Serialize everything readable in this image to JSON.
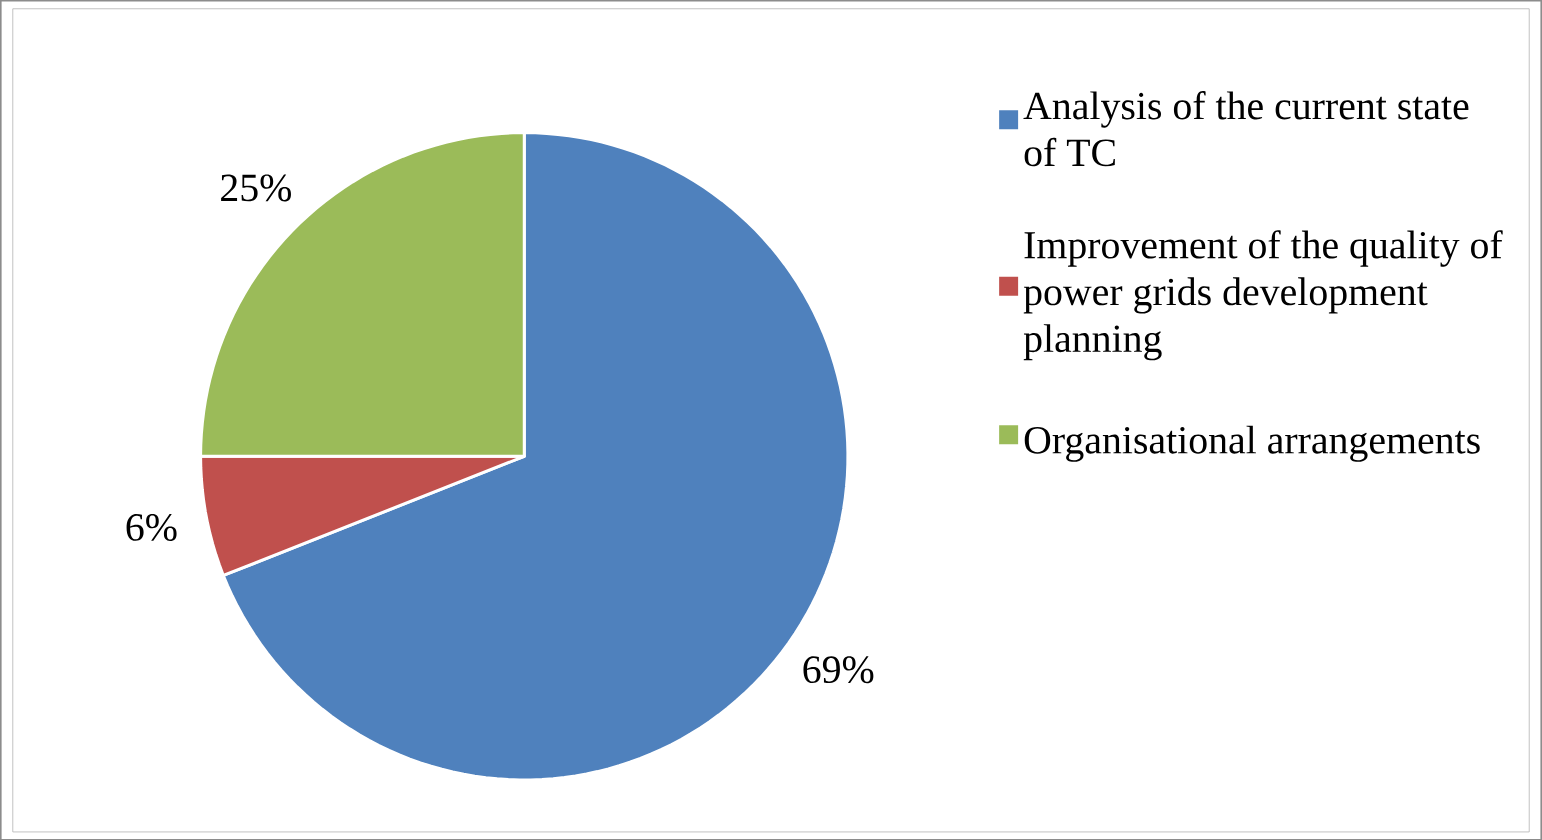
{
  "chart_data": {
    "type": "pie",
    "categories": [
      "Analysis of the current state of TC",
      "Improvement of the quality of power grids development planning",
      "Organisational arrangements"
    ],
    "values": [
      69,
      6,
      25
    ],
    "colors": [
      "#4f81bd",
      "#c0504d",
      "#9bbb59"
    ],
    "value_labels": [
      "69%",
      "6%",
      "25%"
    ],
    "legend": "right"
  }
}
